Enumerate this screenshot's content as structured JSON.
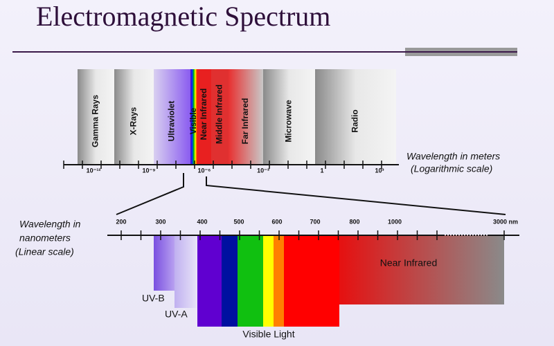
{
  "title": "Electromagnetic Spectrum",
  "top_bands": [
    "Gamma Rays",
    "X-Rays",
    "Ultraviolet",
    "Visible",
    "Near Infrared",
    "Middle Infrared",
    "Far Infrared",
    "Microwave",
    "Radio"
  ],
  "top_axis": {
    "ticks": [
      "10⁻¹²",
      "10⁻⁹",
      "10⁻⁶",
      "10⁻³",
      "1",
      "10³"
    ],
    "label": [
      "Wavelength in meters",
      "(Logarithmic scale)"
    ]
  },
  "bottom_axis": {
    "ticks": [
      "200",
      "300",
      "400",
      "500",
      "600",
      "700",
      "800",
      "1000",
      "3000 nm"
    ],
    "label": [
      "Wavelength in",
      "nanometers",
      "(Linear scale)"
    ]
  },
  "bottom_bands": [
    "UV-B",
    "UV-A",
    "Visible Light",
    "Near Infrared"
  ]
}
